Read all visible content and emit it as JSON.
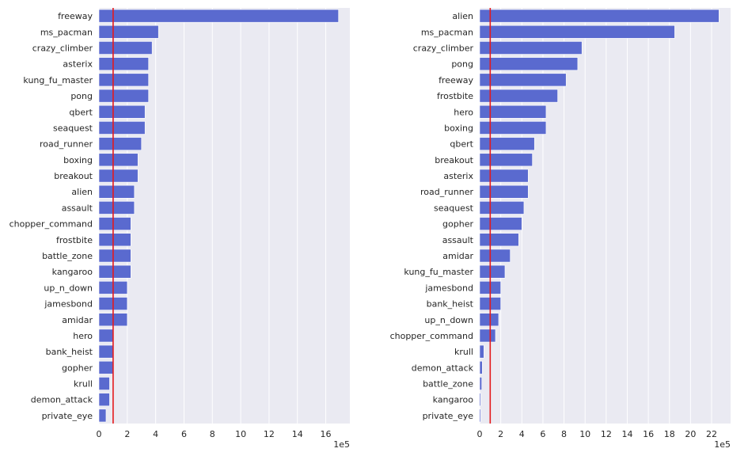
{
  "chart_data": [
    {
      "type": "bar",
      "orientation": "horizontal",
      "categories": [
        "freeway",
        "ms_pacman",
        "crazy_climber",
        "asterix",
        "kung_fu_master",
        "pong",
        "qbert",
        "seaquest",
        "road_runner",
        "boxing",
        "breakout",
        "alien",
        "assault",
        "chopper_command",
        "frostbite",
        "battle_zone",
        "kangaroo",
        "up_n_down",
        "jamesbond",
        "amidar",
        "hero",
        "bank_heist",
        "gopher",
        "krull",
        "demon_attack",
        "private_eye"
      ],
      "values": [
        16.9,
        4.2,
        3.75,
        3.5,
        3.5,
        3.5,
        3.25,
        3.25,
        3.0,
        2.75,
        2.75,
        2.5,
        2.5,
        2.25,
        2.25,
        2.25,
        2.25,
        2.0,
        2.0,
        2.0,
        1.0,
        1.0,
        1.0,
        0.75,
        0.75,
        0.5
      ],
      "xlim": [
        0,
        17.7
      ],
      "xticks": [
        0,
        2,
        4,
        6,
        8,
        10,
        12,
        14,
        16
      ],
      "reference_line": 1.0,
      "scale_label": "1e5",
      "bar_color": "#5a6acf",
      "line_color": "#e41a1c",
      "background": "#eaeaf2"
    },
    {
      "type": "bar",
      "orientation": "horizontal",
      "categories": [
        "alien",
        "ms_pacman",
        "crazy_climber",
        "pong",
        "freeway",
        "frostbite",
        "hero",
        "boxing",
        "qbert",
        "breakout",
        "asterix",
        "road_runner",
        "seaquest",
        "gopher",
        "assault",
        "amidar",
        "kung_fu_master",
        "jamesbond",
        "bank_heist",
        "up_n_down",
        "chopper_command",
        "krull",
        "demon_attack",
        "battle_zone",
        "kangaroo",
        "private_eye"
      ],
      "values": [
        22.7,
        18.5,
        9.7,
        9.3,
        8.2,
        7.4,
        6.3,
        6.3,
        5.2,
        5.0,
        4.6,
        4.6,
        4.2,
        4.0,
        3.7,
        2.9,
        2.4,
        2.0,
        2.0,
        1.8,
        1.5,
        0.4,
        0.25,
        0.2,
        0.1,
        0.1
      ],
      "xlim": [
        0,
        23.8
      ],
      "xticks": [
        0,
        2,
        4,
        6,
        8,
        10,
        12,
        14,
        16,
        18,
        20,
        22
      ],
      "reference_line": 1.0,
      "scale_label": "1e5",
      "bar_color": "#5a6acf",
      "line_color": "#e41a1c",
      "background": "#eaeaf2"
    }
  ]
}
